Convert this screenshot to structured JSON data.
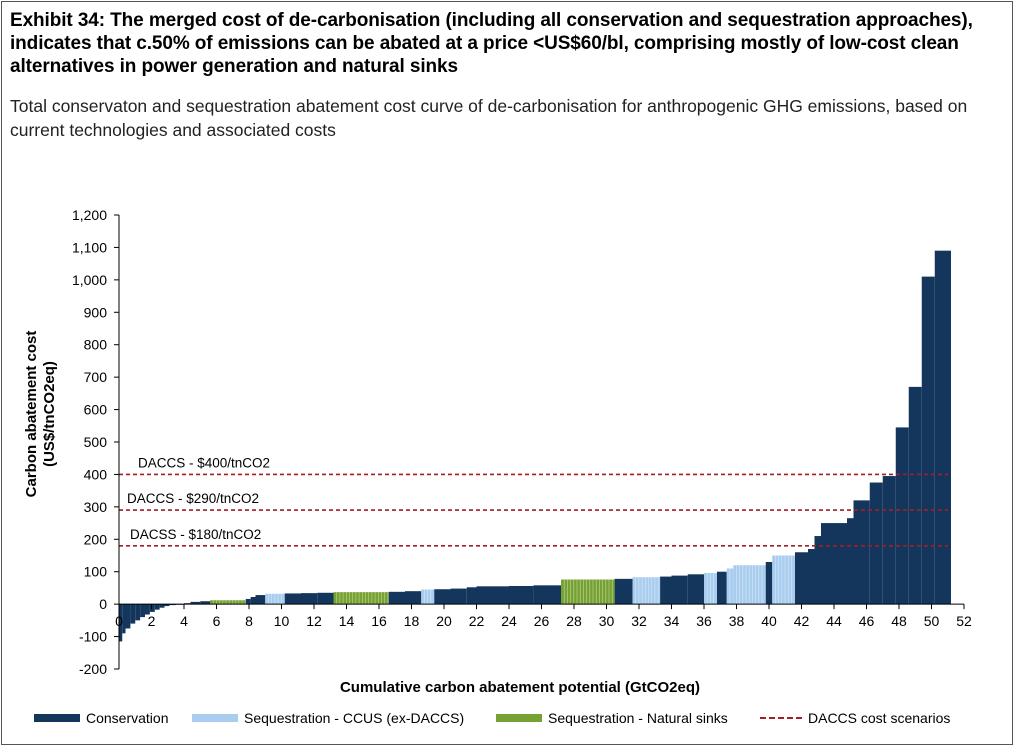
{
  "title": "Exhibit 34: The merged cost of de-carbonisation (including all conservation and sequestration approaches), indicates that c.50% of emissions can be abated at a price <US$60/bl, comprising mostly of low-cost clean alternatives in power generation and natural sinks",
  "subtitle": "Total conservaton and sequestration abatement cost curve of de-carbonisation for anthropogenic GHG emissions, based on current technologies and associated costs",
  "chart_data": {
    "type": "bar",
    "subtype": "marginal abatement cost curve (variable-width bars)",
    "xlabel": "Cumulative carbon abatement potential (GtCO2eq)",
    "ylabel_line1": "Carbon abatement cost",
    "ylabel_line2": "(US$/tnCO2eq)",
    "xlim": [
      0,
      52
    ],
    "ylim": [
      -200,
      1200
    ],
    "xticks": [
      "0",
      "2",
      "4",
      "6",
      "8",
      "10",
      "12",
      "14",
      "16",
      "18",
      "20",
      "22",
      "24",
      "26",
      "28",
      "30",
      "32",
      "34",
      "36",
      "38",
      "40",
      "42",
      "44",
      "46",
      "48",
      "50",
      "52"
    ],
    "yticks": [
      "-200",
      "-100",
      "0",
      "100",
      "200",
      "300",
      "400",
      "500",
      "600",
      "700",
      "800",
      "900",
      "1,000",
      "1,100",
      "1,200"
    ],
    "grid": false,
    "legend_position": "bottom",
    "legend": [
      {
        "label": "Conservation",
        "color": "#14365d",
        "kind": "bar"
      },
      {
        "label": "Sequestration - CCUS (ex-DACCS)",
        "color": "#a9cdef",
        "kind": "bar"
      },
      {
        "label": "Sequestration - Natural sinks",
        "color": "#76a233",
        "kind": "bar"
      },
      {
        "label": "DACCS cost scenarios",
        "color": "#a31f24",
        "kind": "dashed-line"
      }
    ],
    "reference_lines": [
      {
        "label": "DACCS - $400/tnCO2",
        "y": 400
      },
      {
        "label": "DACCS - $290/tnCO2",
        "y": 290
      },
      {
        "label": "DACSS - $180/tnCO2",
        "y": 180
      }
    ],
    "segments": [
      {
        "x0": 0.0,
        "x1": 0.2,
        "y": -115,
        "category": "Conservation"
      },
      {
        "x0": 0.2,
        "x1": 0.4,
        "y": -90,
        "category": "Conservation"
      },
      {
        "x0": 0.4,
        "x1": 0.7,
        "y": -75,
        "category": "Conservation"
      },
      {
        "x0": 0.7,
        "x1": 1.0,
        "y": -60,
        "category": "Conservation"
      },
      {
        "x0": 1.0,
        "x1": 1.3,
        "y": -50,
        "category": "Conservation"
      },
      {
        "x0": 1.3,
        "x1": 1.6,
        "y": -40,
        "category": "Conservation"
      },
      {
        "x0": 1.6,
        "x1": 1.9,
        "y": -32,
        "category": "Conservation"
      },
      {
        "x0": 1.9,
        "x1": 2.2,
        "y": -24,
        "category": "Conservation"
      },
      {
        "x0": 2.2,
        "x1": 2.5,
        "y": -17,
        "category": "Conservation"
      },
      {
        "x0": 2.5,
        "x1": 2.8,
        "y": -11,
        "category": "Conservation"
      },
      {
        "x0": 2.8,
        "x1": 3.1,
        "y": -6,
        "category": "Conservation"
      },
      {
        "x0": 3.1,
        "x1": 3.5,
        "y": -3,
        "category": "Conservation"
      },
      {
        "x0": 3.5,
        "x1": 4.0,
        "y": -1,
        "category": "Conservation"
      },
      {
        "x0": 4.0,
        "x1": 4.4,
        "y": 3,
        "category": "Conservation"
      },
      {
        "x0": 4.4,
        "x1": 5.0,
        "y": 7,
        "category": "Conservation"
      },
      {
        "x0": 5.0,
        "x1": 5.6,
        "y": 9,
        "category": "Conservation"
      },
      {
        "x0": 5.6,
        "x1": 7.8,
        "y": 12,
        "category": "Sequestration - Natural sinks"
      },
      {
        "x0": 7.8,
        "x1": 8.1,
        "y": 16,
        "category": "Conservation"
      },
      {
        "x0": 8.1,
        "x1": 8.4,
        "y": 22,
        "category": "Conservation"
      },
      {
        "x0": 8.4,
        "x1": 9.0,
        "y": 28,
        "category": "Conservation"
      },
      {
        "x0": 9.0,
        "x1": 10.2,
        "y": 32,
        "category": "Sequestration - CCUS (ex-DACCS)"
      },
      {
        "x0": 10.2,
        "x1": 11.2,
        "y": 33,
        "category": "Conservation"
      },
      {
        "x0": 11.2,
        "x1": 12.2,
        "y": 34,
        "category": "Conservation"
      },
      {
        "x0": 12.2,
        "x1": 13.2,
        "y": 35,
        "category": "Conservation"
      },
      {
        "x0": 13.2,
        "x1": 16.6,
        "y": 37,
        "category": "Sequestration - Natural sinks"
      },
      {
        "x0": 16.6,
        "x1": 17.6,
        "y": 38,
        "category": "Conservation"
      },
      {
        "x0": 17.6,
        "x1": 18.6,
        "y": 40,
        "category": "Conservation"
      },
      {
        "x0": 18.6,
        "x1": 19.4,
        "y": 45,
        "category": "Sequestration - CCUS (ex-DACCS)"
      },
      {
        "x0": 19.4,
        "x1": 20.4,
        "y": 46,
        "category": "Conservation"
      },
      {
        "x0": 20.4,
        "x1": 21.4,
        "y": 48,
        "category": "Conservation"
      },
      {
        "x0": 21.4,
        "x1": 22.0,
        "y": 52,
        "category": "Conservation"
      },
      {
        "x0": 22.0,
        "x1": 24.0,
        "y": 55,
        "category": "Conservation"
      },
      {
        "x0": 24.0,
        "x1": 25.5,
        "y": 56,
        "category": "Conservation"
      },
      {
        "x0": 25.5,
        "x1": 27.2,
        "y": 58,
        "category": "Conservation"
      },
      {
        "x0": 27.2,
        "x1": 30.5,
        "y": 76,
        "category": "Sequestration - Natural sinks"
      },
      {
        "x0": 30.5,
        "x1": 31.6,
        "y": 78,
        "category": "Conservation"
      },
      {
        "x0": 31.6,
        "x1": 33.3,
        "y": 83,
        "category": "Sequestration - CCUS (ex-DACCS)"
      },
      {
        "x0": 33.3,
        "x1": 34.0,
        "y": 85,
        "category": "Conservation"
      },
      {
        "x0": 34.0,
        "x1": 35.0,
        "y": 88,
        "category": "Conservation"
      },
      {
        "x0": 35.0,
        "x1": 36.0,
        "y": 92,
        "category": "Conservation"
      },
      {
        "x0": 36.0,
        "x1": 36.8,
        "y": 96,
        "category": "Sequestration - CCUS (ex-DACCS)"
      },
      {
        "x0": 36.8,
        "x1": 37.4,
        "y": 100,
        "category": "Conservation"
      },
      {
        "x0": 37.4,
        "x1": 37.8,
        "y": 110,
        "category": "Sequestration - CCUS (ex-DACCS)"
      },
      {
        "x0": 37.8,
        "x1": 39.8,
        "y": 120,
        "category": "Sequestration - CCUS (ex-DACCS)"
      },
      {
        "x0": 39.8,
        "x1": 40.2,
        "y": 130,
        "category": "Conservation"
      },
      {
        "x0": 40.2,
        "x1": 41.6,
        "y": 150,
        "category": "Sequestration - CCUS (ex-DACCS)"
      },
      {
        "x0": 41.6,
        "x1": 42.4,
        "y": 160,
        "category": "Conservation"
      },
      {
        "x0": 42.4,
        "x1": 42.8,
        "y": 170,
        "category": "Conservation"
      },
      {
        "x0": 42.8,
        "x1": 43.2,
        "y": 210,
        "category": "Conservation"
      },
      {
        "x0": 43.2,
        "x1": 44.8,
        "y": 250,
        "category": "Conservation"
      },
      {
        "x0": 44.8,
        "x1": 45.2,
        "y": 265,
        "category": "Conservation"
      },
      {
        "x0": 45.2,
        "x1": 46.2,
        "y": 320,
        "category": "Conservation"
      },
      {
        "x0": 46.2,
        "x1": 47.0,
        "y": 375,
        "category": "Conservation"
      },
      {
        "x0": 47.0,
        "x1": 47.8,
        "y": 395,
        "category": "Conservation"
      },
      {
        "x0": 47.8,
        "x1": 48.6,
        "y": 545,
        "category": "Conservation"
      },
      {
        "x0": 48.6,
        "x1": 49.4,
        "y": 670,
        "category": "Conservation"
      },
      {
        "x0": 49.4,
        "x1": 50.2,
        "y": 1010,
        "category": "Conservation"
      },
      {
        "x0": 50.2,
        "x1": 51.2,
        "y": 1090,
        "category": "Conservation"
      }
    ]
  }
}
